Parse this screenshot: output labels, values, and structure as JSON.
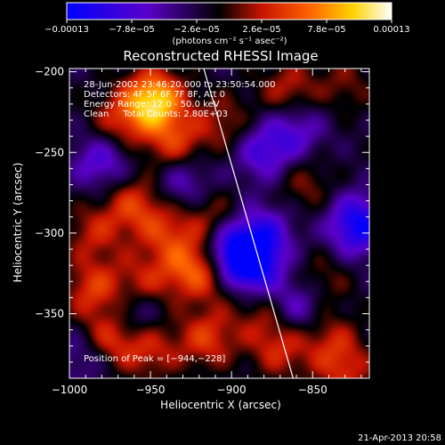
{
  "chart_data": {
    "type": "heatmap",
    "title": "Reconstructed RHESSI Image",
    "xlabel": "Heliocentric X (arcsec)",
    "ylabel": "Heliocentric Y (arcsec)",
    "xlim": [
      -1000,
      -815
    ],
    "ylim": [
      -390,
      -198
    ],
    "x_ticks": [
      -1000,
      -950,
      -900,
      -850
    ],
    "x_tick_labels": [
      "−1000",
      "−950",
      "−900",
      "−850"
    ],
    "y_ticks": [
      -200,
      -250,
      -300,
      -350
    ],
    "y_tick_labels": [
      "−200",
      "−250",
      "−300",
      "−350"
    ],
    "colorbar": {
      "range": [
        -0.00013,
        0.00013
      ],
      "ticks": [
        -0.00013,
        -7.8e-05,
        -2.6e-05,
        2.6e-05,
        7.8e-05,
        0.00013
      ],
      "tick_labels": [
        "−0.00013",
        "−7.8e−05",
        "−2.6e−05",
        "2.6e−05",
        "7.8e−05",
        "0.00013"
      ],
      "unit_label": "(photons cm⁻² s⁻¹ asec⁻²)",
      "colors": [
        "#0000ff",
        "#5a00c8",
        "#000000",
        "#c81400",
        "#ff6400",
        "#ffd200",
        "#ffffff"
      ]
    },
    "annotations": [
      "28-Jun-2002 23:46:20.000 to 23:50:54.000",
      "Detectors: 4F 5F 6F 7F 8F, Att 0",
      "Energy Range: 12.0 - 50.0 keV",
      "Clean     Total Counts: 2.80E+03"
    ],
    "peak_label": "Position of Peak = [−944,−228]",
    "peak": [
      -944,
      -228
    ],
    "blobs": [
      {
        "x": -948,
        "y": -218,
        "v": 0.000125
      },
      {
        "x": -935,
        "y": -245,
        "v": 6e-05
      },
      {
        "x": -970,
        "y": -232,
        "v": 5e-05
      },
      {
        "x": -905,
        "y": -232,
        "v": 4e-05
      },
      {
        "x": -865,
        "y": -212,
        "v": 5e-05
      },
      {
        "x": -830,
        "y": -208,
        "v": 3e-05
      },
      {
        "x": -985,
        "y": -300,
        "v": 4.5e-05
      },
      {
        "x": -960,
        "y": -282,
        "v": 6e-05
      },
      {
        "x": -940,
        "y": -300,
        "v": 5e-05
      },
      {
        "x": -912,
        "y": -290,
        "v": 4e-05
      },
      {
        "x": -985,
        "y": -335,
        "v": 6e-05
      },
      {
        "x": -955,
        "y": -332,
        "v": 5e-05
      },
      {
        "x": -925,
        "y": -322,
        "v": 7e-05
      },
      {
        "x": -905,
        "y": -325,
        "v": 5e-05
      },
      {
        "x": -975,
        "y": -365,
        "v": 7e-05
      },
      {
        "x": -950,
        "y": -372,
        "v": 5e-05
      },
      {
        "x": -915,
        "y": -365,
        "v": 6e-05
      },
      {
        "x": -880,
        "y": -350,
        "v": 4e-05
      },
      {
        "x": -870,
        "y": -372,
        "v": 5e-05
      },
      {
        "x": -840,
        "y": -365,
        "v": 4e-05
      },
      {
        "x": -830,
        "y": -385,
        "v": 5e-05
      },
      {
        "x": -845,
        "y": -330,
        "v": 3.5e-05
      },
      {
        "x": -855,
        "y": -270,
        "v": 3.5e-05
      },
      {
        "x": -880,
        "y": -300,
        "v": -6e-05
      },
      {
        "x": -890,
        "y": -320,
        "v": -0.00012
      },
      {
        "x": -900,
        "y": -312,
        "v": -8e-05
      },
      {
        "x": -822,
        "y": -295,
        "v": -0.0001
      },
      {
        "x": -980,
        "y": -255,
        "v": -6e-05
      },
      {
        "x": -930,
        "y": -268,
        "v": -5e-05
      },
      {
        "x": -880,
        "y": -250,
        "v": -6e-05
      },
      {
        "x": -860,
        "y": -235,
        "v": -5e-05
      },
      {
        "x": -960,
        "y": -350,
        "v": -5e-05
      },
      {
        "x": -860,
        "y": -345,
        "v": -6e-05
      },
      {
        "x": -990,
        "y": -375,
        "v": -4e-05
      }
    ],
    "limb_line": [
      [
        -918,
        -195
      ],
      [
        -862,
        -390
      ]
    ]
  },
  "footer": {
    "timestamp": "21-Apr-2013 20:58"
  }
}
